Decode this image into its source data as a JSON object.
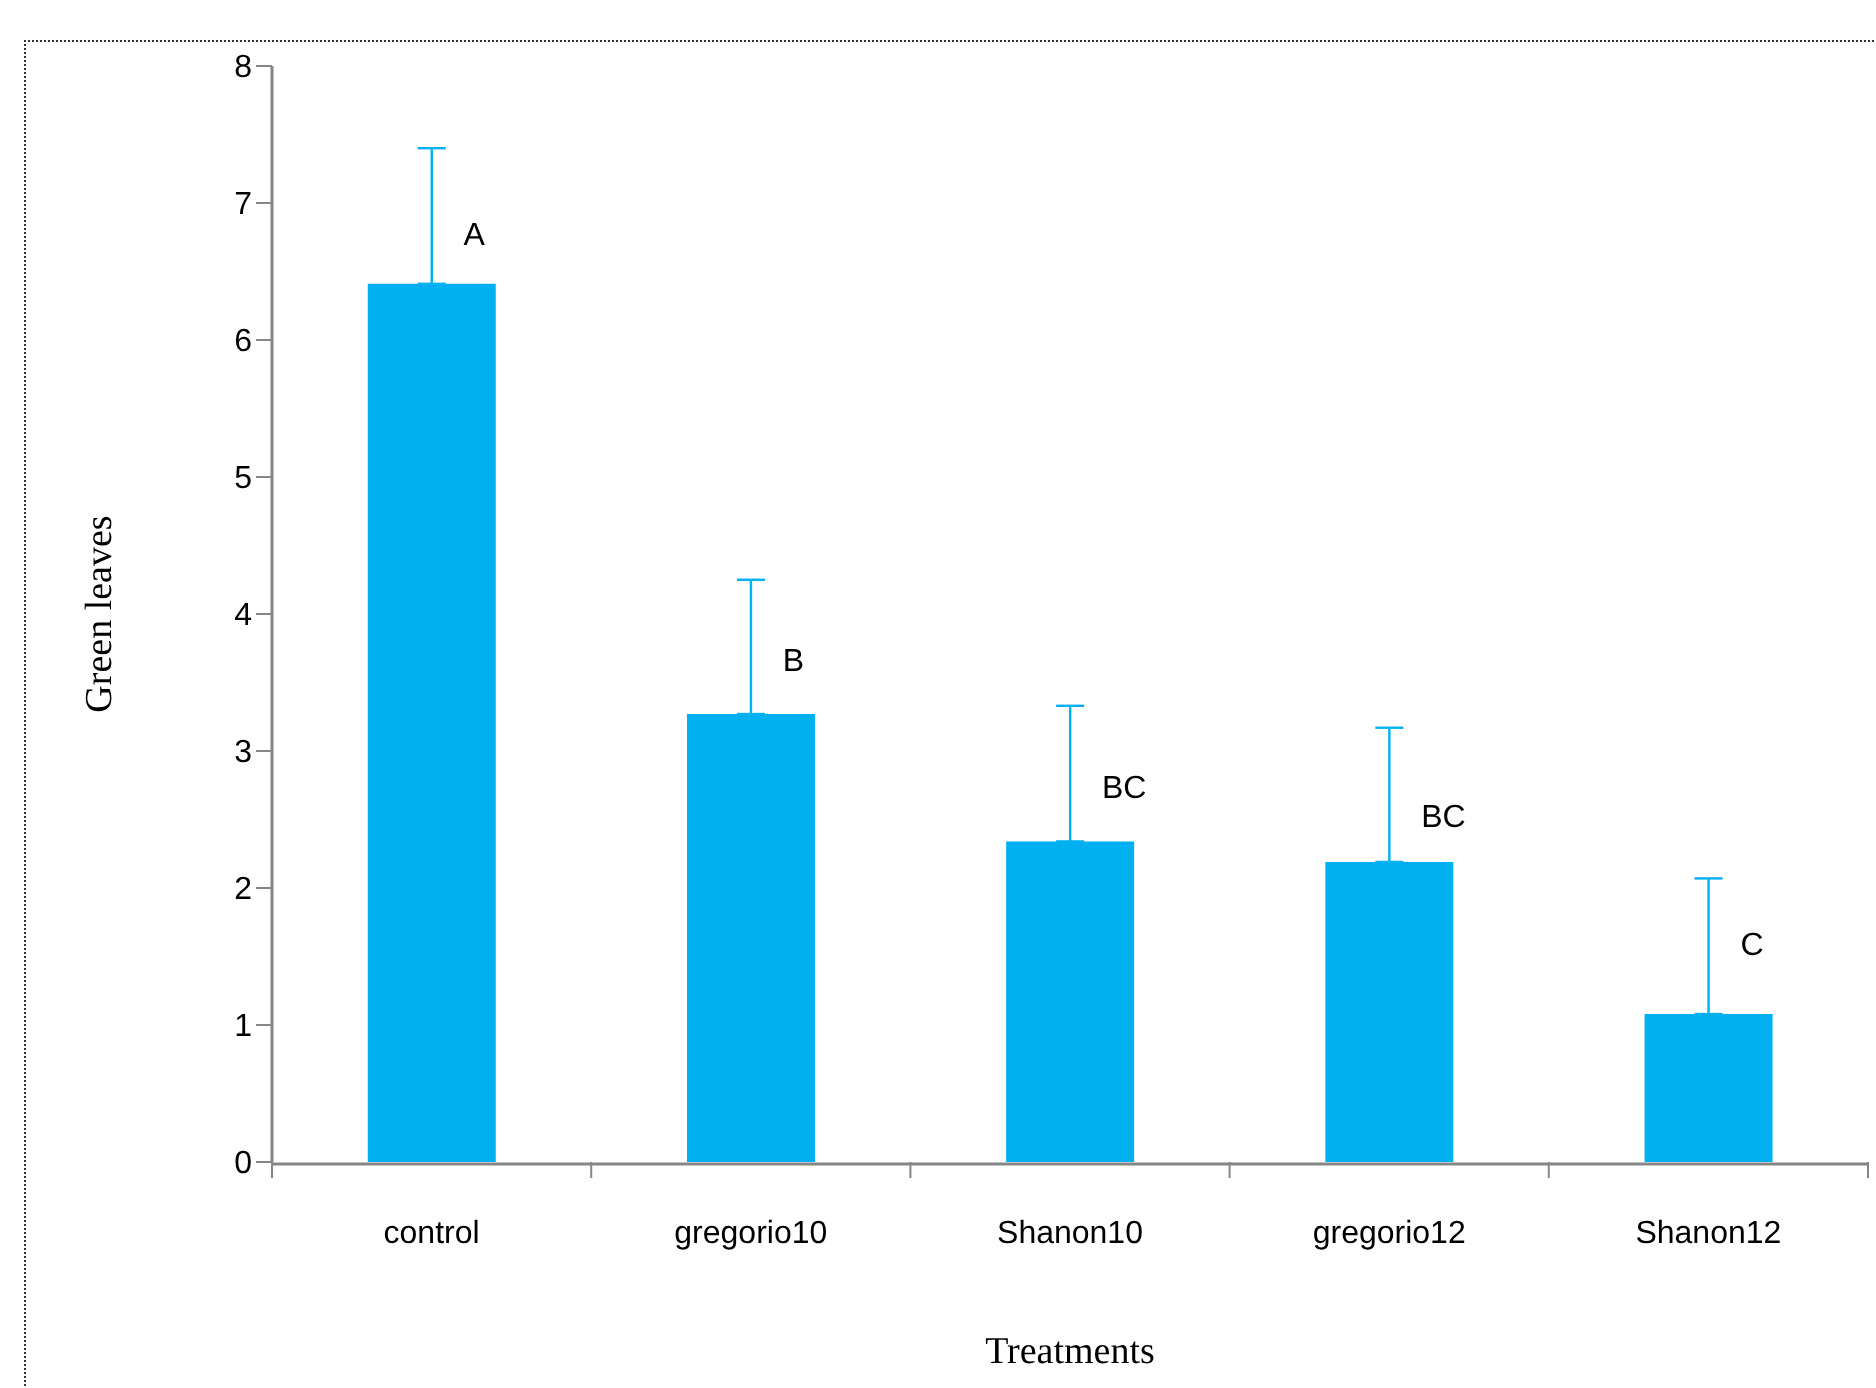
{
  "chart_data": {
    "type": "bar",
    "xlabel": "Treatments",
    "ylabel": "Green leaves",
    "categories": [
      "control",
      "gregorio10",
      "Shanon10",
      "gregorio12",
      "Shanon12"
    ],
    "values": [
      6.41,
      3.27,
      2.34,
      2.19,
      1.08
    ],
    "errors": [
      [
        6.41,
        7.4
      ],
      [
        3.27,
        4.25
      ],
      [
        2.34,
        3.33
      ],
      [
        2.19,
        3.17
      ],
      [
        1.08,
        2.07
      ]
    ],
    "color": "#00b0f0",
    "ylim": [
      0,
      8
    ],
    "yticks": [
      0,
      1,
      2,
      3,
      4,
      5,
      6,
      7,
      8
    ],
    "annotations": [
      {
        "text": "A",
        "x": "control",
        "y": 6.76
      },
      {
        "text": "B",
        "x": "gregorio10",
        "y": 3.65
      },
      {
        "text": "BC",
        "x": "Shanon10",
        "y": 2.72
      },
      {
        "text": "BC",
        "x": "gregorio12",
        "y": 2.51
      },
      {
        "text": "C",
        "x": "Shanon12",
        "y": 1.58
      }
    ]
  }
}
